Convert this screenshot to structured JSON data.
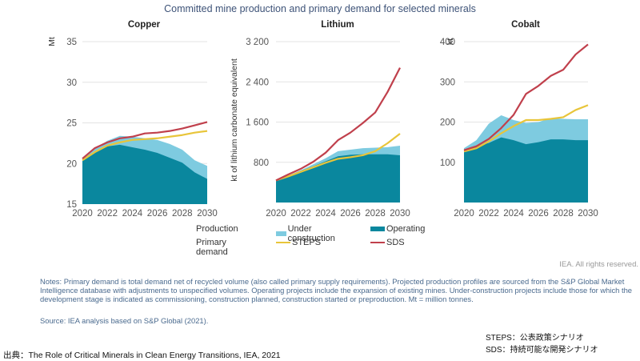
{
  "title": "Committed mine production and primary demand for selected minerals",
  "colors": {
    "operating": "#0a879e",
    "under_construction": "#7ecbe0",
    "steps": "#e8c53a",
    "sds": "#c0404c",
    "grid": "#e3e3e3"
  },
  "chart_data": [
    {
      "type": "area",
      "title": "Copper",
      "ylabel": "Mt",
      "xlabel": "",
      "x": [
        2020,
        2021,
        2022,
        2023,
        2024,
        2025,
        2026,
        2027,
        2028,
        2029,
        2030
      ],
      "xticks": [
        "2020",
        "2022",
        "2024",
        "2026",
        "2028",
        "2030"
      ],
      "yticks": [
        "15",
        "20",
        "25",
        "30",
        "35"
      ],
      "ytick_values": [
        15,
        20,
        25,
        30,
        35
      ],
      "ylim": [
        15,
        35
      ],
      "grid": true,
      "series": [
        {
          "name": "Operating",
          "kind": "area",
          "values": [
            20.3,
            21.5,
            22.1,
            22.3,
            22.0,
            21.7,
            21.3,
            20.7,
            20.1,
            18.9,
            18.1
          ]
        },
        {
          "name": "Under construction",
          "kind": "area-stacked-total",
          "values": [
            20.5,
            21.8,
            22.8,
            23.4,
            23.3,
            23.1,
            22.9,
            22.4,
            21.7,
            20.4,
            19.7
          ]
        },
        {
          "name": "STEPS",
          "kind": "line",
          "values": [
            20.4,
            21.4,
            22.2,
            22.6,
            22.9,
            23.0,
            23.1,
            23.3,
            23.5,
            23.8,
            24.0
          ]
        },
        {
          "name": "SDS",
          "kind": "line",
          "values": [
            20.6,
            21.9,
            22.6,
            23.1,
            23.3,
            23.7,
            23.8,
            24.0,
            24.3,
            24.7,
            25.1
          ]
        }
      ]
    },
    {
      "type": "area",
      "title": "Lithium",
      "ylabel": "kt of lithium carbonate equivalent",
      "xlabel": "",
      "x": [
        2020,
        2021,
        2022,
        2023,
        2024,
        2025,
        2026,
        2027,
        2028,
        2029,
        2030
      ],
      "xticks": [
        "2020",
        "2022",
        "2024",
        "2026",
        "2028",
        "2030"
      ],
      "yticks": [
        "",
        "800",
        "1 600",
        "2 400",
        "3 200"
      ],
      "ytick_values": [
        0,
        800,
        1600,
        2400,
        3200
      ],
      "ylim": [
        0,
        3200
      ],
      "grid": true,
      "series": [
        {
          "name": "Operating",
          "kind": "area",
          "values": [
            430,
            530,
            630,
            720,
            820,
            920,
            950,
            960,
            960,
            960,
            940
          ]
        },
        {
          "name": "Under construction",
          "kind": "area-stacked-total",
          "values": [
            440,
            540,
            640,
            760,
            880,
            1020,
            1050,
            1080,
            1090,
            1100,
            1130
          ]
        },
        {
          "name": "STEPS",
          "kind": "line",
          "values": [
            440,
            520,
            610,
            700,
            790,
            870,
            900,
            940,
            1020,
            1180,
            1370
          ]
        },
        {
          "name": "SDS",
          "kind": "line",
          "values": [
            440,
            560,
            670,
            810,
            990,
            1240,
            1390,
            1580,
            1790,
            2200,
            2680
          ]
        }
      ]
    },
    {
      "type": "area",
      "title": "Cobalt",
      "ylabel": "kt",
      "xlabel": "",
      "x": [
        2020,
        2021,
        2022,
        2023,
        2024,
        2025,
        2026,
        2027,
        2028,
        2029,
        2030
      ],
      "xticks": [
        "2020",
        "2022",
        "2024",
        "2026",
        "2028",
        "2030"
      ],
      "yticks": [
        "",
        "100",
        "200",
        "300",
        "400"
      ],
      "ytick_values": [
        0,
        100,
        200,
        300,
        400
      ],
      "ylim": [
        0,
        400
      ],
      "grid": true,
      "series": [
        {
          "name": "Operating",
          "kind": "area",
          "values": [
            125,
            140,
            148,
            162,
            155,
            145,
            150,
            157,
            157,
            155,
            155
          ]
        },
        {
          "name": "Under construction",
          "kind": "area-stacked-total",
          "values": [
            135,
            155,
            196,
            217,
            205,
            198,
            200,
            210,
            208,
            207,
            207
          ]
        },
        {
          "name": "STEPS",
          "kind": "line",
          "values": [
            127,
            135,
            152,
            172,
            190,
            205,
            205,
            208,
            212,
            230,
            242
          ]
        },
        {
          "name": "SDS",
          "kind": "line",
          "values": [
            130,
            140,
            158,
            185,
            218,
            270,
            290,
            315,
            330,
            368,
            393
          ]
        }
      ]
    }
  ],
  "legend": {
    "production_label": "Production",
    "demand_label": "Primary demand",
    "under_construction": "Under construction",
    "operating": "Operating",
    "steps": "STEPS",
    "sds": "SDS",
    "placement": "bottom-center"
  },
  "rights": "IEA. All rights reserved.",
  "notes": "Notes: Primary demand is total demand net of recycled volume (also called primary supply requirements). Projected production profiles are sourced from the S&P Global Market Intelligence database with adjustments to unspecified volumes. Operating projects include the expansion of existing mines. Under-construction projects include those for which the development stage is indicated as commissioning, construction planned, construction started or preproduction. Mt = million tonnes.",
  "source": "Source: IEA analysis based on S&P Global (2021).",
  "jp_legend": {
    "steps": "STEPS：公表政策シナリオ",
    "sds": "SDS：持続可能な開発シナリオ"
  },
  "citation": "出典：The Role of Critical Minerals in Clean Energy Transitions, IEA, 2021"
}
